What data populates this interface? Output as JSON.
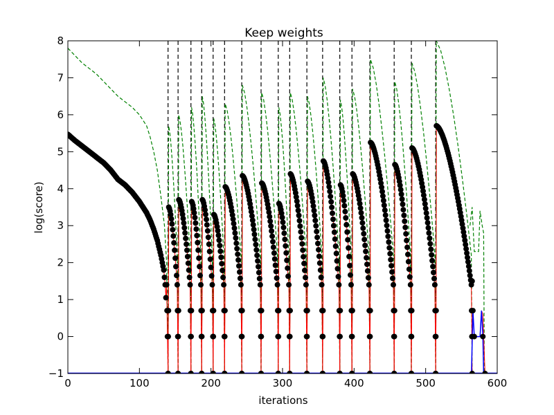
{
  "chart_data": {
    "type": "line",
    "title": "Keep weights",
    "xlabel": "iterations",
    "ylabel": "log(score)",
    "xlim": [
      0,
      600
    ],
    "ylim": [
      -1,
      8
    ],
    "xticks": [
      "0",
      "100",
      "200",
      "300",
      "400",
      "500",
      "600"
    ],
    "yticks": [
      "−1",
      "0",
      "1",
      "2",
      "3",
      "4",
      "5",
      "6",
      "7",
      "8"
    ],
    "grid": false,
    "legend": "none",
    "colors": {
      "points": "#000000",
      "red_line": "#ff0000",
      "green_dashed": "#008000",
      "blue_line": "#0000ff",
      "restart_lines": "#000000"
    },
    "restart_iterations": [
      140,
      154,
      172,
      187,
      203,
      219,
      243,
      270,
      294,
      310,
      334,
      356,
      380,
      397,
      422,
      456,
      480,
      514
    ],
    "initial_segment": {
      "keypoints": [
        [
          0,
          5.47
        ],
        [
          10,
          5.3
        ],
        [
          20,
          5.15
        ],
        [
          30,
          5.0
        ],
        [
          40,
          4.85
        ],
        [
          50,
          4.7
        ],
        [
          60,
          4.5
        ],
        [
          70,
          4.25
        ],
        [
          80,
          4.1
        ],
        [
          90,
          3.9
        ],
        [
          100,
          3.65
        ],
        [
          110,
          3.35
        ],
        [
          115,
          3.15
        ],
        [
          120,
          2.9
        ],
        [
          125,
          2.6
        ],
        [
          130,
          2.2
        ],
        [
          134,
          1.8
        ],
        [
          136,
          1.4
        ],
        [
          138,
          0.7
        ],
        [
          140,
          -1
        ]
      ],
      "green_dashed": [
        [
          0,
          7.8
        ],
        [
          20,
          7.4
        ],
        [
          40,
          7.1
        ],
        [
          50,
          6.9
        ],
        [
          70,
          6.5
        ],
        [
          90,
          6.2
        ],
        [
          100,
          6.0
        ],
        [
          110,
          5.7
        ],
        [
          115,
          5.4
        ],
        [
          120,
          5.0
        ],
        [
          125,
          4.5
        ],
        [
          130,
          3.8
        ],
        [
          135,
          3.0
        ],
        [
          138,
          2.0
        ],
        [
          140,
          -1
        ]
      ]
    },
    "restart_segments": [
      {
        "start": 140,
        "end": 154,
        "peak": 3.5,
        "green_peak": 5.7
      },
      {
        "start": 154,
        "end": 172,
        "peak": 3.7,
        "green_peak": 6.0
      },
      {
        "start": 172,
        "end": 187,
        "peak": 3.65,
        "green_peak": 6.2
      },
      {
        "start": 187,
        "end": 203,
        "peak": 3.7,
        "green_peak": 6.5
      },
      {
        "start": 203,
        "end": 219,
        "peak": 3.3,
        "green_peak": 5.9
      },
      {
        "start": 219,
        "end": 243,
        "peak": 4.05,
        "green_peak": 6.3
      },
      {
        "start": 243,
        "end": 270,
        "peak": 4.35,
        "green_peak": 6.8
      },
      {
        "start": 270,
        "end": 294,
        "peak": 4.15,
        "green_peak": 6.6
      },
      {
        "start": 294,
        "end": 310,
        "peak": 3.6,
        "green_peak": 6.2
      },
      {
        "start": 310,
        "end": 334,
        "peak": 4.4,
        "green_peak": 6.6
      },
      {
        "start": 334,
        "end": 356,
        "peak": 4.2,
        "green_peak": 6.5
      },
      {
        "start": 356,
        "end": 380,
        "peak": 4.75,
        "green_peak": 7.0
      },
      {
        "start": 380,
        "end": 397,
        "peak": 4.1,
        "green_peak": 6.4
      },
      {
        "start": 397,
        "end": 422,
        "peak": 4.4,
        "green_peak": 6.7
      },
      {
        "start": 422,
        "end": 456,
        "peak": 5.25,
        "green_peak": 7.5
      },
      {
        "start": 456,
        "end": 480,
        "peak": 4.65,
        "green_peak": 6.9
      },
      {
        "start": 480,
        "end": 514,
        "peak": 5.1,
        "green_peak": 7.4
      },
      {
        "start": 514,
        "end": 565,
        "peak": 5.7,
        "green_peak": 8.0
      }
    ],
    "tail": {
      "black_points": [
        [
          565,
          1.5
        ],
        [
          566,
          0.7
        ],
        [
          568,
          0
        ],
        [
          580,
          0
        ],
        [
          583,
          -1
        ]
      ],
      "blue_line": [
        [
          564,
          -1
        ],
        [
          566,
          0.7
        ],
        [
          568,
          0
        ],
        [
          576,
          0
        ],
        [
          578,
          0.7
        ],
        [
          580,
          0
        ],
        [
          581,
          -1
        ]
      ],
      "red_line": [
        [
          566,
          0.7
        ],
        [
          568,
          0
        ],
        [
          576,
          0
        ],
        [
          578,
          0.7
        ],
        [
          580,
          0.6
        ],
        [
          583,
          -1
        ]
      ],
      "green_dashed": [
        [
          562,
          3.0
        ],
        [
          565,
          3.5
        ],
        [
          568,
          2.3
        ],
        [
          574,
          2.3
        ],
        [
          576,
          3.4
        ],
        [
          579,
          3.0
        ],
        [
          581,
          2.8
        ],
        [
          582,
          -1
        ]
      ]
    }
  }
}
